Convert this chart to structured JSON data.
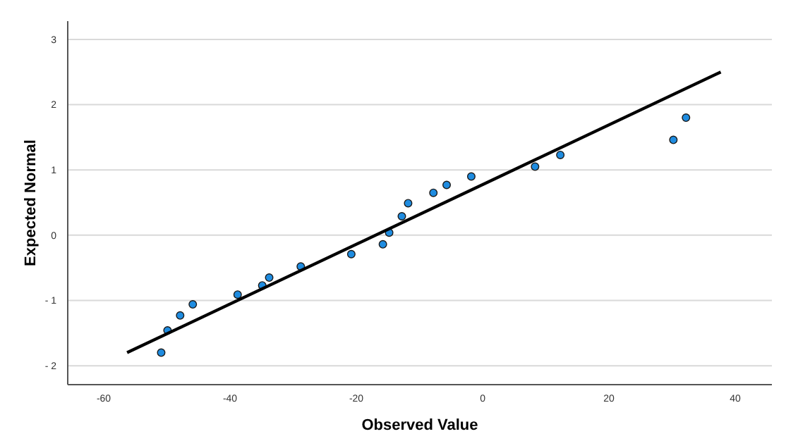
{
  "chart_data": {
    "type": "scatter",
    "xlabel": "Observed Value",
    "ylabel": "Expected Normal",
    "xlim": [
      -65.7,
      45.8
    ],
    "ylim": [
      -2.29,
      3.28
    ],
    "xticks": [
      {
        "value": -60,
        "label": "-60"
      },
      {
        "value": -40,
        "label": "-40"
      },
      {
        "value": -20,
        "label": "-20"
      },
      0,
      20,
      40
    ],
    "yticks": [
      {
        "value": -2,
        "label": "- 2"
      },
      {
        "value": -1,
        "label": "- 1"
      },
      0,
      1,
      2,
      3
    ],
    "grid": "y",
    "series": [
      {
        "marker": "circle",
        "color": "#1f8ce0",
        "x": [
          -50.9,
          -49.9,
          -47.9,
          -45.9,
          -38.8,
          -34.9,
          -33.8,
          -28.8,
          -20.8,
          -15.8,
          -14.8,
          -12.8,
          -11.8,
          -7.8,
          -5.7,
          -1.8,
          8.3,
          12.3,
          30.2,
          32.2
        ],
        "values": [
          -1.8,
          -1.46,
          -1.23,
          -1.06,
          -0.91,
          -0.77,
          -0.65,
          -0.48,
          -0.29,
          -0.14,
          0.04,
          0.29,
          0.49,
          0.65,
          0.77,
          0.9,
          1.05,
          1.23,
          1.46,
          1.8
        ]
      },
      {
        "type": "line",
        "color": "#000000",
        "x": [
          -56.3,
          37.7
        ],
        "values": [
          -1.8,
          2.5
        ]
      }
    ]
  }
}
